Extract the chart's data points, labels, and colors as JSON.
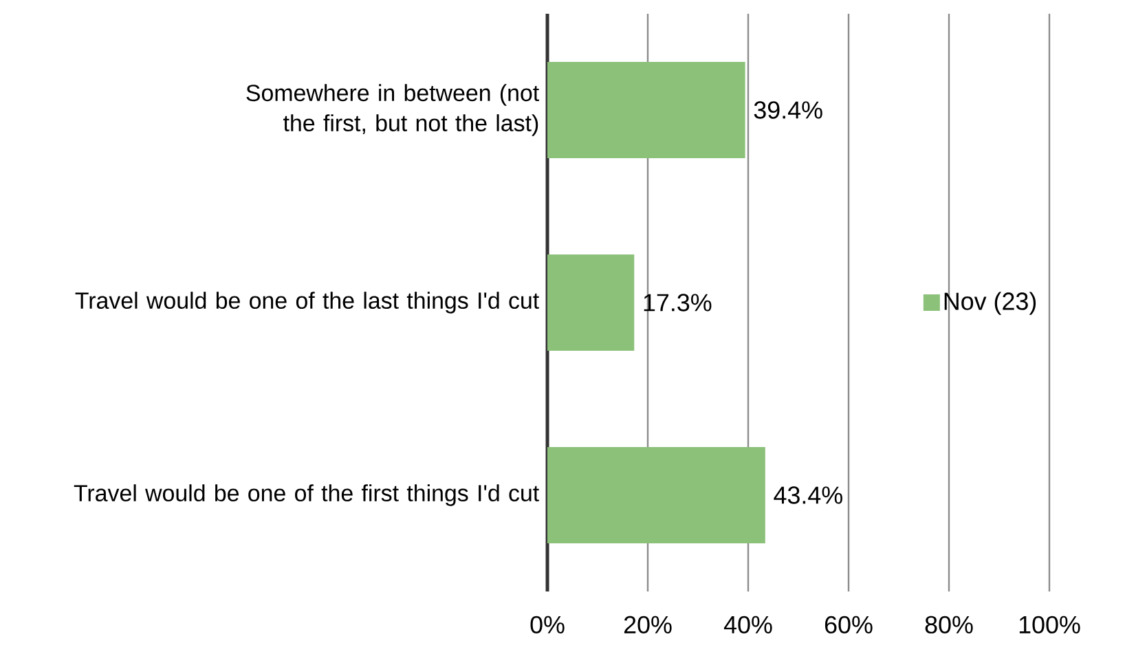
{
  "chart_data": {
    "type": "bar",
    "orientation": "horizontal",
    "categories": [
      "Somewhere in between (not the first, but not the last)",
      "Travel would be one of the last things I'd cut",
      "Travel would be one of the first things I'd cut"
    ],
    "series": [
      {
        "name": "Nov (23)",
        "color": "#8cc17a",
        "values": [
          39.4,
          17.3,
          43.4
        ],
        "value_labels": [
          "39.4%",
          "17.3%",
          "43.4%"
        ]
      }
    ],
    "xlim": [
      0,
      100
    ],
    "xticks": [
      {
        "value": 0,
        "label": "0%"
      },
      {
        "value": 20,
        "label": "20%"
      },
      {
        "value": 40,
        "label": "40%"
      },
      {
        "value": 60,
        "label": "60%"
      },
      {
        "value": 80,
        "label": "80%"
      },
      {
        "value": 100,
        "label": "100%"
      }
    ],
    "grid": "x",
    "legend": "right"
  }
}
